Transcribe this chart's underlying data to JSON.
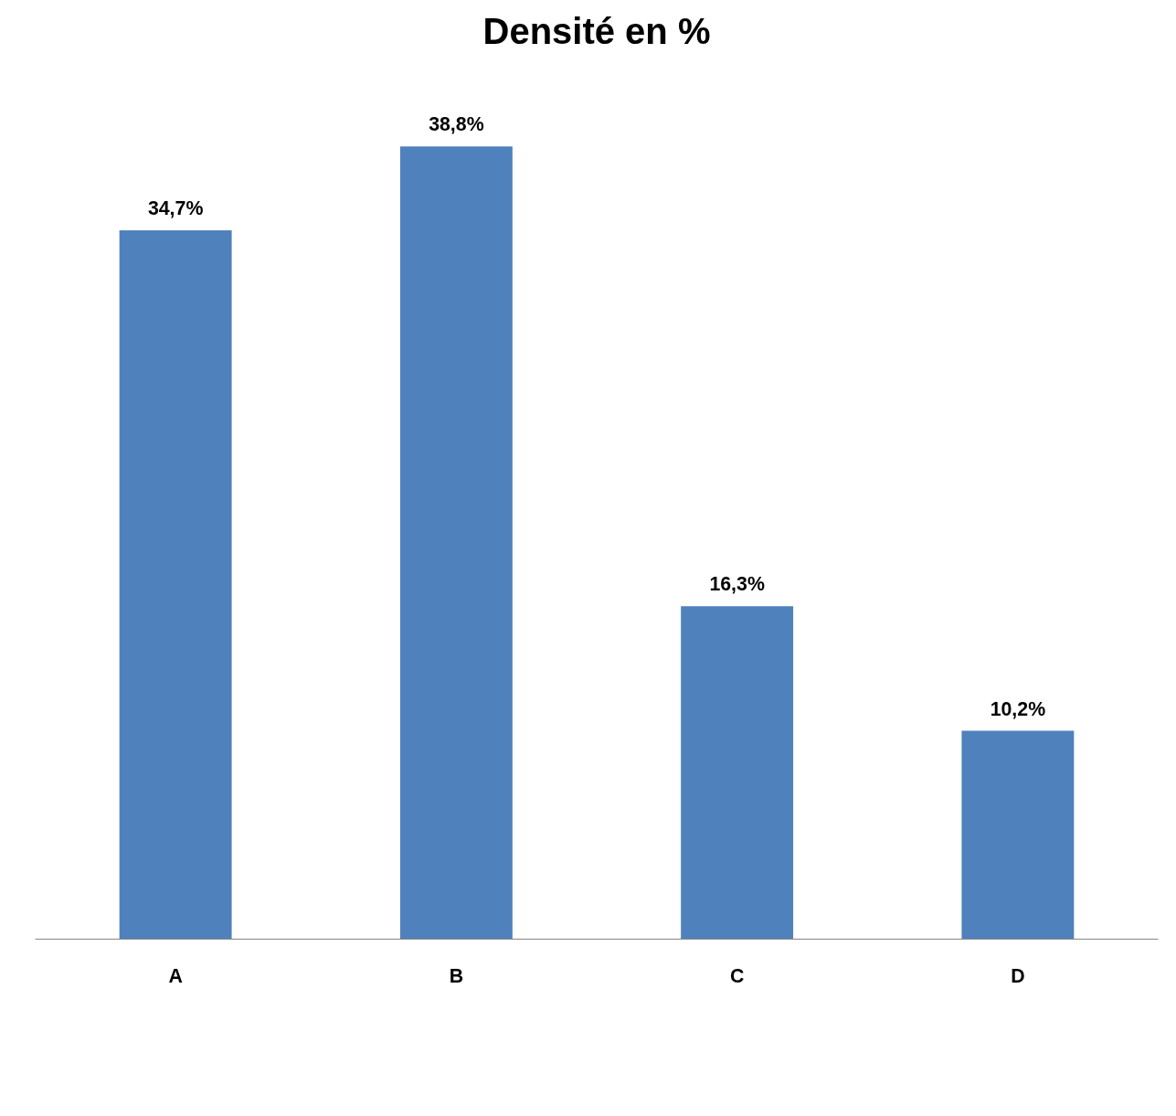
{
  "chart_data": {
    "type": "bar",
    "title": "Densité en %",
    "categories": [
      "A",
      "B",
      "C",
      "D"
    ],
    "values": [
      34.7,
      38.8,
      16.3,
      10.2
    ],
    "value_labels": [
      "34,7%",
      "38,8%",
      "16,3%",
      "10,2%"
    ],
    "color": "#4f81bd",
    "grid": false
  }
}
